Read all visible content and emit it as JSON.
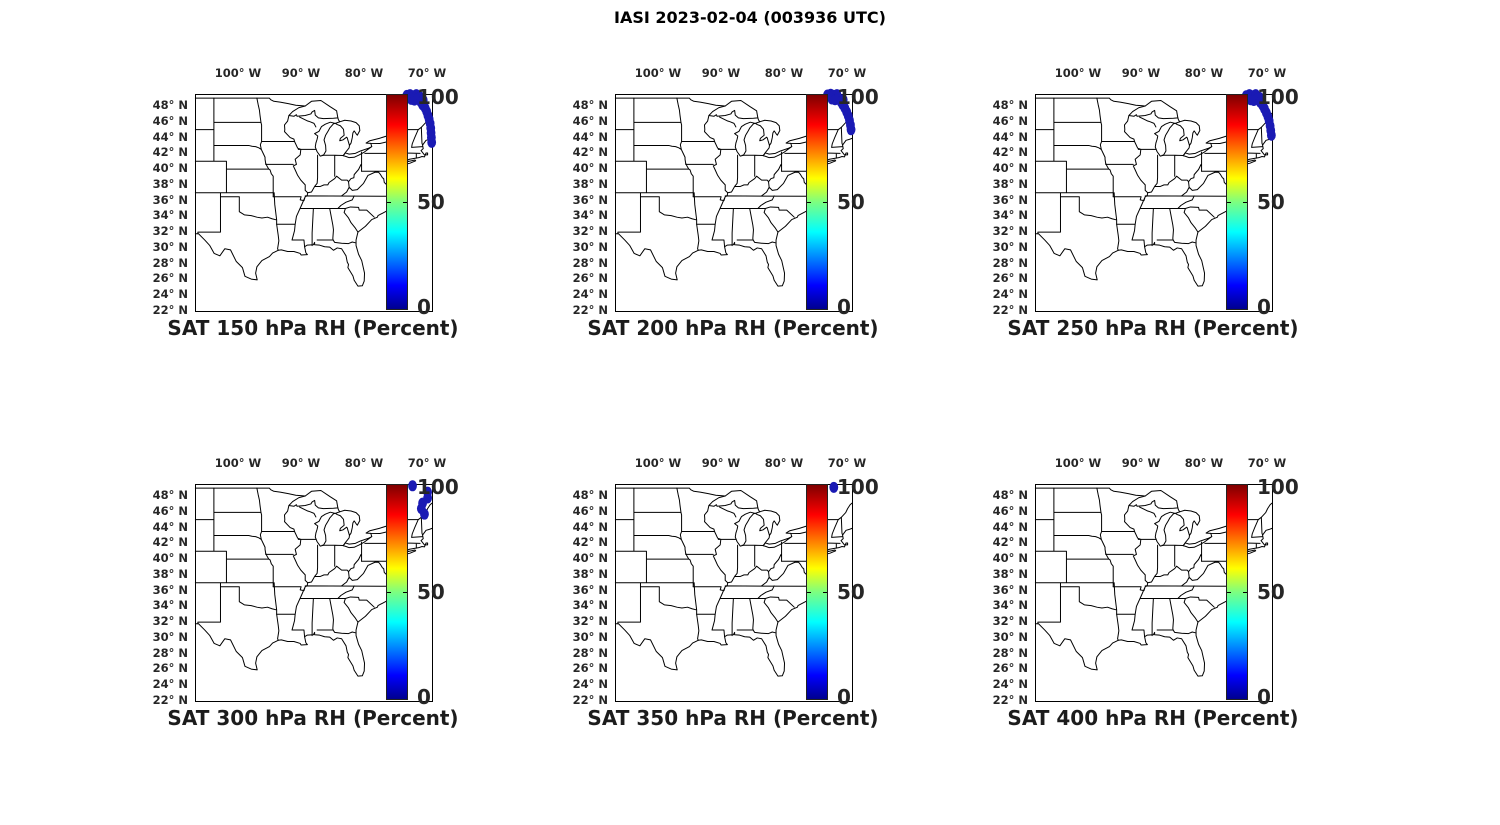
{
  "figure": {
    "suptitle": "IASI 2023-02-04 (003936 UTC)"
  },
  "chart_data": {
    "type": "scatter",
    "suptitle": "IASI 2023-02-04 (003936 UTC)",
    "map_region": "Eastern United States coastline with state boundaries",
    "projection": "equirectangular lon/lat",
    "layout": "2 rows x 3 columns of identical maps, colorbar right of each map, title below each map",
    "lon_axis": {
      "tick_labels": [
        "100° W",
        "90° W",
        "80° W",
        "70° W"
      ],
      "ticks_deg_west": [
        100,
        90,
        80,
        70
      ],
      "range_deg_west": [
        106.9,
        69.3
      ],
      "label_side": "top"
    },
    "lat_axis": {
      "tick_labels": [
        "48° N",
        "46° N",
        "44° N",
        "42° N",
        "40° N",
        "38° N",
        "36° N",
        "34° N",
        "32° N",
        "30° N",
        "28° N",
        "26° N",
        "24° N",
        "22° N"
      ],
      "ticks_deg_north": [
        48,
        46,
        44,
        42,
        40,
        38,
        36,
        34,
        32,
        30,
        28,
        26,
        24,
        22
      ],
      "range_deg_north": [
        22,
        49.4
      ],
      "label_side": "left"
    },
    "colorbar": {
      "colormap": "jet",
      "min": 0,
      "max": 100,
      "tick_labels": [
        "100",
        "50",
        "0"
      ],
      "units": "Percent RH",
      "jet_stops": [
        [
          "0%",
          "#00008f"
        ],
        [
          "11%",
          "#0000ff"
        ],
        [
          "36%",
          "#00ffff"
        ],
        [
          "50%",
          "#7dff80"
        ],
        [
          "61%",
          "#ffff00"
        ],
        [
          "86%",
          "#ff0000"
        ],
        [
          "100%",
          "#7f0000"
        ]
      ]
    },
    "point_color": "#1a1ab4",
    "point_value_note": "all plotted soundings are near 0-5% RH (dark blue), clustered over northern New England / southern Quebec",
    "panels": [
      {
        "title": "SAT 150 hPa RH (Percent)",
        "level_hpa": 150,
        "rh_percent_approx": 2,
        "points_lon_lat": [
          [
            -73.3,
            49.35
          ],
          [
            -72.8,
            49.45
          ],
          [
            -72.3,
            49.3
          ],
          [
            -71.8,
            49.45
          ],
          [
            -72.6,
            48.85
          ],
          [
            -72.1,
            48.75
          ],
          [
            -71.6,
            48.95
          ],
          [
            -71.2,
            49.15
          ],
          [
            -71.1,
            48.55
          ],
          [
            -70.7,
            48.75
          ],
          [
            -70.8,
            48.15
          ],
          [
            -70.4,
            47.75
          ],
          [
            -70.15,
            47.3
          ],
          [
            -69.95,
            46.8
          ],
          [
            -69.75,
            46.3
          ],
          [
            -69.6,
            45.8
          ],
          [
            -69.5,
            45.2
          ],
          [
            -69.45,
            44.6
          ],
          [
            -69.4,
            44.0
          ],
          [
            -69.35,
            43.4
          ]
        ]
      },
      {
        "title": "SAT 200 hPa RH (Percent)",
        "level_hpa": 200,
        "rh_percent_approx": 2,
        "points_lon_lat": [
          [
            -73.2,
            49.4
          ],
          [
            -72.7,
            49.5
          ],
          [
            -72.2,
            49.35
          ],
          [
            -71.7,
            49.45
          ],
          [
            -72.5,
            48.9
          ],
          [
            -72.0,
            48.8
          ],
          [
            -71.5,
            49.0
          ],
          [
            -71.1,
            48.6
          ],
          [
            -70.7,
            48.8
          ],
          [
            -70.8,
            48.2
          ],
          [
            -70.45,
            47.75
          ],
          [
            -70.15,
            47.25
          ],
          [
            -69.9,
            46.75
          ],
          [
            -69.7,
            46.2
          ],
          [
            -69.55,
            45.6
          ],
          [
            -69.45,
            45.0
          ]
        ]
      },
      {
        "title": "SAT 250 hPa RH (Percent)",
        "level_hpa": 250,
        "rh_percent_approx": 2,
        "points_lon_lat": [
          [
            -73.4,
            49.3
          ],
          [
            -72.9,
            49.45
          ],
          [
            -72.4,
            49.3
          ],
          [
            -71.9,
            49.45
          ],
          [
            -72.7,
            48.8
          ],
          [
            -72.2,
            48.7
          ],
          [
            -71.7,
            48.9
          ],
          [
            -71.3,
            49.1
          ],
          [
            -71.2,
            48.5
          ],
          [
            -70.8,
            48.1
          ],
          [
            -70.5,
            47.65
          ],
          [
            -70.2,
            47.15
          ],
          [
            -69.95,
            46.65
          ],
          [
            -69.75,
            46.1
          ],
          [
            -69.6,
            45.5
          ],
          [
            -69.5,
            44.9
          ],
          [
            -69.4,
            44.3
          ]
        ]
      },
      {
        "title": "SAT 300 hPa RH (Percent)",
        "level_hpa": 300,
        "rh_percent_approx": 2,
        "points_lon_lat": [
          [
            -72.4,
            49.3
          ],
          [
            -70.0,
            48.5
          ],
          [
            -70.0,
            47.75
          ],
          [
            -70.8,
            47.1
          ],
          [
            -71.0,
            46.4
          ],
          [
            -70.5,
            45.7
          ]
        ]
      },
      {
        "title": "SAT 350 hPa RH (Percent)",
        "level_hpa": 350,
        "rh_percent_approx": 2,
        "points_lon_lat": [
          [
            -72.2,
            49.1
          ]
        ]
      },
      {
        "title": "SAT 400 hPa RH (Percent)",
        "level_hpa": 400,
        "rh_percent_approx": null,
        "points_lon_lat": []
      }
    ]
  }
}
